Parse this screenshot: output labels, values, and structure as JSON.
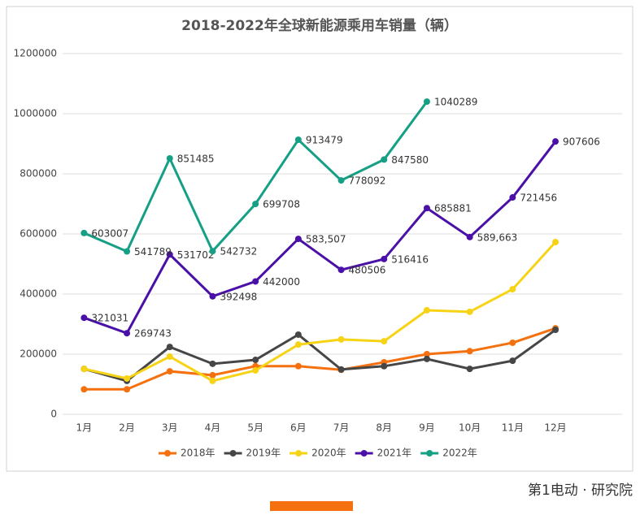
{
  "chart_data": {
    "type": "line",
    "title": "2018-2022年全球新能源乘用车销量（辆）",
    "categories": [
      "1月",
      "2月",
      "3月",
      "4月",
      "5月",
      "6月",
      "7月",
      "8月",
      "9月",
      "10月",
      "11月",
      "12月"
    ],
    "ylim": [
      0,
      1200000
    ],
    "yticks": [
      0,
      200000,
      400000,
      600000,
      800000,
      1000000,
      1200000
    ],
    "grid": true,
    "legend": "bottom",
    "series": [
      {
        "name": "2018年",
        "color": "#f5700f",
        "values": [
          83000,
          83000,
          143000,
          130000,
          160000,
          160000,
          148000,
          173000,
          200000,
          210000,
          238000,
          286000
        ]
      },
      {
        "name": "2019年",
        "color": "#464646",
        "values": [
          151000,
          111000,
          224000,
          168000,
          181000,
          265000,
          149000,
          160000,
          184000,
          151000,
          178000,
          281000
        ]
      },
      {
        "name": "2020年",
        "color": "#f7d316",
        "values": [
          151000,
          119000,
          192000,
          111000,
          146000,
          232000,
          249000,
          243000,
          346000,
          341000,
          416000,
          573000
        ]
      },
      {
        "name": "2021年",
        "color": "#4a10a8",
        "values": [
          321031,
          269743,
          531702,
          392498,
          442000,
          583507,
          480506,
          516416,
          685881,
          589663,
          721456,
          907606
        ],
        "value_labels": [
          "321031",
          "269743",
          "531702",
          "392498",
          "442000",
          "583,507",
          "480506",
          "516416",
          "685881",
          "589,663",
          "721456",
          "907606"
        ]
      },
      {
        "name": "2022年",
        "color": "#15a085",
        "values": [
          603007,
          541789,
          851485,
          542732,
          699708,
          913479,
          778092,
          847580,
          1040289,
          null,
          null,
          null
        ],
        "value_labels": [
          "603007",
          "541789",
          "851485",
          "542732",
          "699708",
          "913479",
          "778092",
          "847580",
          "1040289",
          null,
          null,
          null
        ]
      }
    ]
  },
  "watermark": "第1电动 · 研究院"
}
